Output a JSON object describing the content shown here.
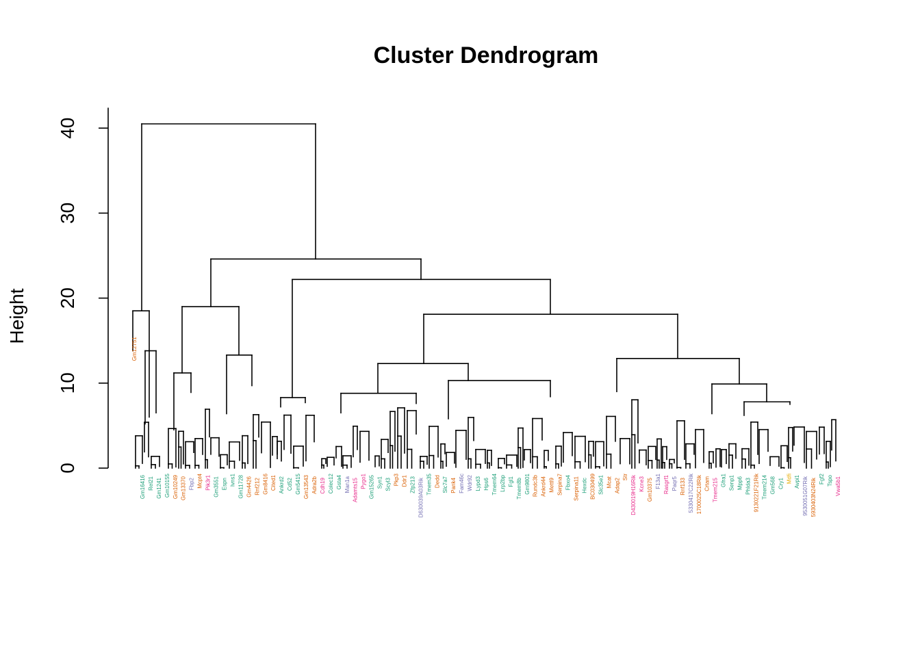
{
  "chart_data": {
    "type": "dendrogram",
    "title": "Cluster Dendrogram",
    "ylabel": "Height",
    "xlabel": "",
    "ylim": [
      0,
      42
    ],
    "yticks": [
      0,
      10,
      20,
      30,
      40
    ],
    "grid": false,
    "colors": {
      "green": "#1b9e77",
      "orange": "#d95f02",
      "purple": "#7570b3",
      "magenta": "#e7298a",
      "yellow": "#e6ab02"
    },
    "leaf_labels": [
      {
        "text": "Gm12751",
        "color": "orange"
      },
      {
        "text": "Gm16416",
        "color": "green"
      },
      {
        "text": "Rel21",
        "color": "green"
      },
      {
        "text": "Gm1241",
        "color": "green"
      },
      {
        "text": "Gm10155",
        "color": "green"
      },
      {
        "text": "Gm10249",
        "color": "orange"
      },
      {
        "text": "Gm13370",
        "color": "orange"
      },
      {
        "text": "Fbp2",
        "color": "purple"
      },
      {
        "text": "Mcpt4",
        "color": "orange"
      },
      {
        "text": "Pik3r1",
        "color": "magenta"
      },
      {
        "text": "Gm3551",
        "color": "green"
      },
      {
        "text": "Espn",
        "color": "green"
      },
      {
        "text": "Ivns1",
        "color": "green"
      },
      {
        "text": "Gm11728",
        "color": "green"
      },
      {
        "text": "Gm4426",
        "color": "orange"
      },
      {
        "text": "Rnf212",
        "color": "orange"
      },
      {
        "text": "Gm8416",
        "color": "orange"
      },
      {
        "text": "Cited1",
        "color": "orange"
      },
      {
        "text": "Ankrd2",
        "color": "green"
      },
      {
        "text": "Cd52",
        "color": "green"
      },
      {
        "text": "Gm5415",
        "color": "green"
      },
      {
        "text": "Gm13543",
        "color": "orange"
      },
      {
        "text": "Adra2b",
        "color": "orange"
      },
      {
        "text": "Cdh19",
        "color": "magenta"
      },
      {
        "text": "Colec12",
        "color": "green"
      },
      {
        "text": "Gsta4",
        "color": "green"
      },
      {
        "text": "Man1a",
        "color": "purple"
      },
      {
        "text": "Adamts15",
        "color": "magenta"
      },
      {
        "text": "Pygo1",
        "color": "magenta"
      },
      {
        "text": "Gm15265",
        "color": "green"
      },
      {
        "text": "Syn1",
        "color": "green"
      },
      {
        "text": "Scyl3",
        "color": "green"
      },
      {
        "text": "Pkp3",
        "color": "orange"
      },
      {
        "text": "Ddr1",
        "color": "orange"
      },
      {
        "text": "Zfp213",
        "color": "green"
      },
      {
        "text": "D630039A03Rik",
        "color": "purple"
      },
      {
        "text": "Tmem35",
        "color": "green"
      },
      {
        "text": "Dedd",
        "color": "orange"
      },
      {
        "text": "Slc7a7",
        "color": "green"
      },
      {
        "text": "Pank4",
        "color": "orange"
      },
      {
        "text": "Fam46c",
        "color": "purple"
      },
      {
        "text": "Wdr92",
        "color": "purple"
      },
      {
        "text": "Lypd3",
        "color": "green"
      },
      {
        "text": "Hps6",
        "color": "green"
      },
      {
        "text": "Tmem64",
        "color": "green"
      },
      {
        "text": "Lrp2bp",
        "color": "green"
      },
      {
        "text": "Fgl1",
        "color": "green"
      },
      {
        "text": "Tmem8b",
        "color": "green"
      },
      {
        "text": "Gm9801",
        "color": "green"
      },
      {
        "text": "Rundc3b",
        "color": "orange"
      },
      {
        "text": "Ankrd44",
        "color": "orange"
      },
      {
        "text": "Mettl9",
        "color": "orange"
      },
      {
        "text": "Serpina7",
        "color": "orange"
      },
      {
        "text": "Fbxo4",
        "color": "green"
      },
      {
        "text": "Serpina11",
        "color": "orange"
      },
      {
        "text": "Hexdc",
        "color": "green"
      },
      {
        "text": "BC030499",
        "color": "orange"
      },
      {
        "text": "Slc35e1",
        "color": "green"
      },
      {
        "text": "Mcat",
        "color": "orange"
      },
      {
        "text": "Adap2",
        "color": "orange"
      },
      {
        "text": "Str",
        "color": "orange"
      },
      {
        "text": "D430019H16Rik",
        "color": "magenta"
      },
      {
        "text": "Kcne3",
        "color": "magenta"
      },
      {
        "text": "Gm10375",
        "color": "orange"
      },
      {
        "text": "F13a1",
        "color": "purple"
      },
      {
        "text": "Rasgrf1",
        "color": "magenta"
      },
      {
        "text": "Paqr5",
        "color": "purple"
      },
      {
        "text": "Rnf133",
        "color": "orange"
      },
      {
        "text": "5330417C22Rik",
        "color": "purple"
      },
      {
        "text": "1700025C18Rik",
        "color": "orange"
      },
      {
        "text": "Crtam",
        "color": "orange"
      },
      {
        "text": "Tmem215",
        "color": "magenta"
      },
      {
        "text": "Gfra1",
        "color": "green"
      },
      {
        "text": "Senp1",
        "color": "green"
      },
      {
        "text": "Mpp6",
        "color": "green"
      },
      {
        "text": "Phlda3",
        "color": "green"
      },
      {
        "text": "9130221F21Rik",
        "color": "orange"
      },
      {
        "text": "Tmem214",
        "color": "green"
      },
      {
        "text": "Gm568",
        "color": "green"
      },
      {
        "text": "Cry1",
        "color": "green"
      },
      {
        "text": "Mdfi",
        "color": "yellow"
      },
      {
        "text": "Avpi1",
        "color": "green"
      },
      {
        "text": "9530051G07Rik",
        "color": "purple"
      },
      {
        "text": "5930403N24Rik",
        "color": "orange"
      },
      {
        "text": "Fgf2",
        "color": "green"
      },
      {
        "text": "Tspo",
        "color": "green"
      },
      {
        "text": "Vwa5b1",
        "color": "magenta"
      }
    ],
    "merges": [
      {
        "a": "n1",
        "b": "n2",
        "height": 40.5
      },
      {
        "a": "n3",
        "b": "n4",
        "height": 24.6
      },
      {
        "a": "n5",
        "b": "n6",
        "height": 22.2
      },
      {
        "a": "n7",
        "b": "n8",
        "height": 18.5
      },
      {
        "a": "n9",
        "b": "n10",
        "height": 19.0
      },
      {
        "a": "n11",
        "b": "n12",
        "height": 18.1
      },
      {
        "a": "n13",
        "b": "n14",
        "height": 13.8
      },
      {
        "a": "n15",
        "b": "n16",
        "height": 13.3
      },
      {
        "a": "n17",
        "b": "n18",
        "height": 12.9
      },
      {
        "a": "n19",
        "b": "n20",
        "height": 12.3
      },
      {
        "a": "n21",
        "b": "n22",
        "height": 11.2
      },
      {
        "a": "n23",
        "b": "n24",
        "height": 10.3
      },
      {
        "a": "n25",
        "b": "n26",
        "height": 9.9
      },
      {
        "a": "n27",
        "b": "n28",
        "height": 9.0
      },
      {
        "a": "n29",
        "b": "n30",
        "height": 8.8
      },
      {
        "a": "n31",
        "b": "n32",
        "height": 8.3
      },
      {
        "a": "n33",
        "b": "n34",
        "height": 7.8
      }
    ]
  }
}
